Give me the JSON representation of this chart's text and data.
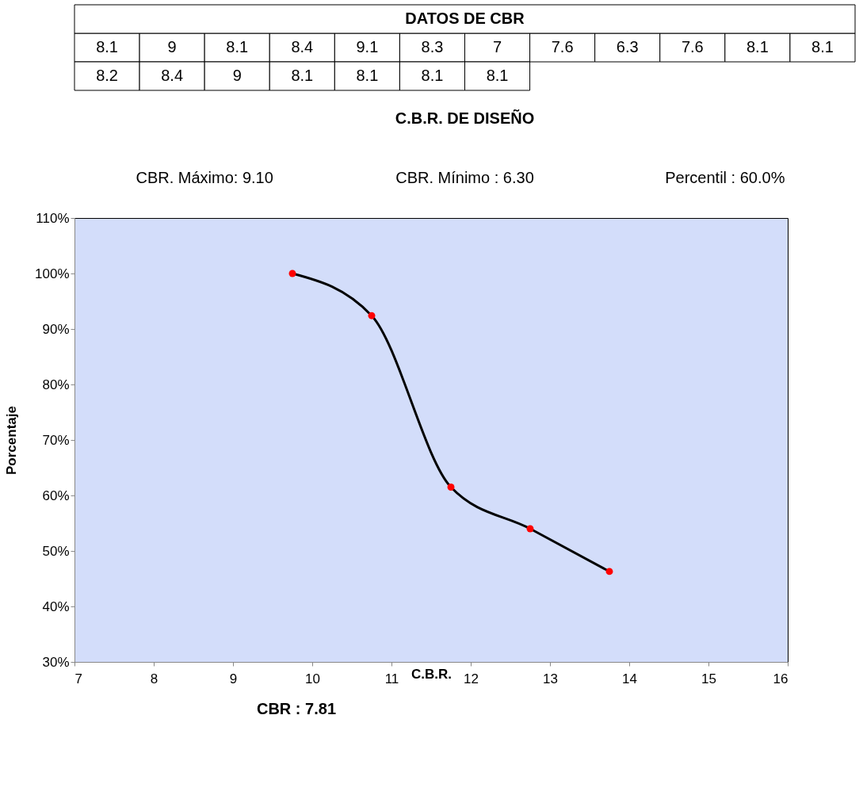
{
  "chart_data": [
    {
      "type": "other",
      "title": "DATOS DE CBR",
      "annotations": [
        "8.1",
        "9",
        "8.1",
        "8.4",
        "9.1",
        "8.3",
        "7",
        "7.6",
        "6.3",
        "7.6",
        "8.1",
        "8.1",
        "8.2",
        "8.4",
        "9",
        "8.1",
        "8.1",
        "8.1",
        "8.1"
      ]
    },
    {
      "type": "line",
      "title": "C.B.R. DE DISEÑO",
      "xlabel": "C.B.R.",
      "ylabel": "Porcentaje",
      "xlim": [
        7,
        16
      ],
      "xticks": [
        7,
        8,
        9,
        10,
        11,
        12,
        13,
        14,
        15,
        16
      ],
      "ylim": [
        30,
        110
      ],
      "yticks": [
        {
          "value": 30,
          "label": "30%"
        },
        {
          "value": 40,
          "label": "40%"
        },
        {
          "value": 50,
          "label": "50%"
        },
        {
          "value": 60,
          "label": "60%"
        },
        {
          "value": 70,
          "label": "70%"
        },
        {
          "value": 80,
          "label": "80%"
        },
        {
          "value": 90,
          "label": "90%"
        },
        {
          "value": 100,
          "label": "100%"
        },
        {
          "value": 110,
          "label": "110%"
        }
      ],
      "grid": false,
      "line_style": "solid",
      "series": [
        {
          "type": "line",
          "color": "#000000",
          "marker": "none",
          "x": [
            9.75,
            10.75,
            11.75,
            12.75,
            13.75
          ],
          "values": [
            100,
            92.4,
            61.5,
            54,
            46.3
          ]
        },
        {
          "type": "scatter",
          "color": "#ff0000",
          "marker": "circle",
          "x": [
            9.75,
            10.75,
            11.75,
            12.75,
            13.75
          ],
          "values": [
            100,
            92.4,
            61.5,
            54,
            46.3
          ]
        }
      ],
      "annotations": [
        "CBR. Máximo: 9.10",
        "CBR. Mínimo : 6.30",
        "Percentil : 60.0%",
        "CBR : 7.81"
      ]
    }
  ]
}
